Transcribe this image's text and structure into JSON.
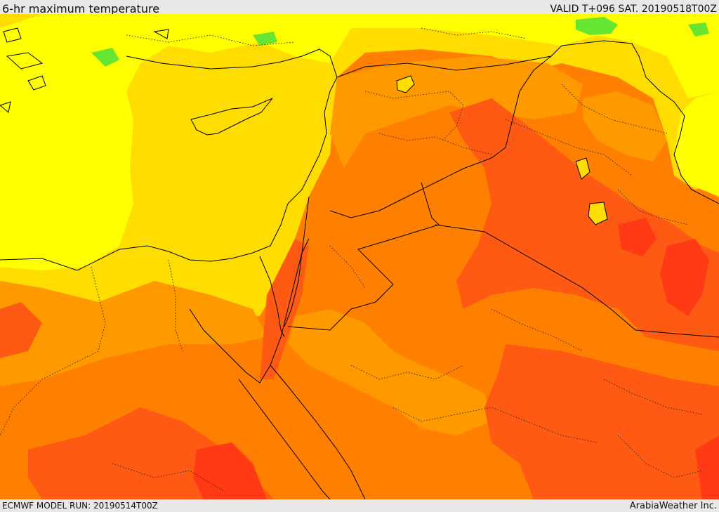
{
  "header": {
    "title": "6-hr maximum temperature",
    "valid": "VALID T+096 SAT. 20190518T00Z"
  },
  "footer": {
    "model_run": "ECMWF MODEL RUN: 20190514T00Z",
    "credit": "ArabiaWeather Inc."
  },
  "colors": {
    "cool_green": "#66e633",
    "light_yellow": "#ffff00",
    "yellow": "#ffdd00",
    "yellow_orange": "#ffbb00",
    "light_orange": "#ff9900",
    "orange": "#ff7f00",
    "dark_orange": "#ff5a14",
    "red": "#ff3a14",
    "borders": "#000000"
  }
}
